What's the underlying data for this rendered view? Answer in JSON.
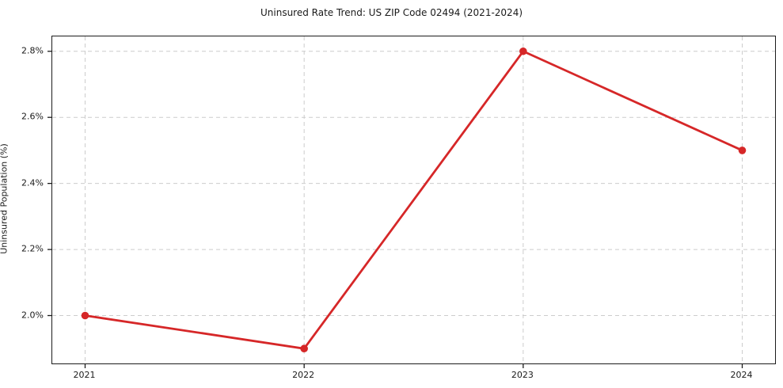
{
  "chart_data": {
    "type": "line",
    "title": "Uninsured Rate Trend: US ZIP Code 02494 (2021-2024)",
    "xlabel": "",
    "ylabel": "Uninsured Population (%)",
    "x": [
      2021,
      2022,
      2023,
      2024
    ],
    "values": [
      2.0,
      1.9,
      2.8,
      2.5
    ],
    "xlim": [
      2020.85,
      2024.15
    ],
    "ylim": [
      1.855,
      2.845
    ],
    "xticks": [
      2021,
      2022,
      2023,
      2024
    ],
    "xtick_labels": [
      "2021",
      "2022",
      "2023",
      "2024"
    ],
    "yticks": [
      2.0,
      2.2,
      2.4,
      2.6,
      2.8
    ],
    "ytick_labels": [
      "2.0%",
      "2.2%",
      "2.4%",
      "2.6%",
      "2.8%"
    ],
    "grid": true,
    "legend": "none",
    "colors": {
      "line": "#d62728",
      "marker": "#d62728",
      "grid": "#cccccc",
      "spine": "#1c1c1c",
      "text": "#1a1a1a"
    }
  }
}
